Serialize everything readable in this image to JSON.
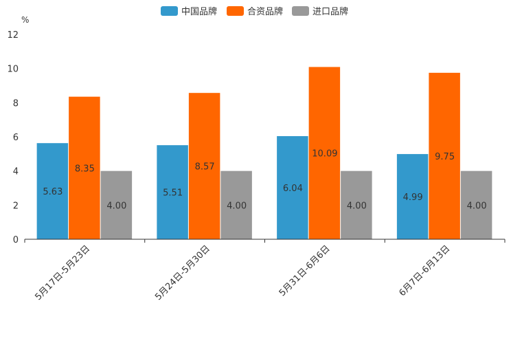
{
  "chart_data": {
    "type": "bar",
    "title": "",
    "ylabel": "%",
    "xlabel": "",
    "ylim": [
      0,
      12
    ],
    "yticks": [
      0,
      2,
      4,
      6,
      8,
      10,
      12
    ],
    "legend_position": "top",
    "categories": [
      "5月17日-5月23日",
      "5月24日-5月30日",
      "5月31日-6月6日",
      "6月7日-6月13日"
    ],
    "series": [
      {
        "name": "中国品牌",
        "color": "#3399CC",
        "values": [
          5.63,
          5.51,
          6.04,
          4.99
        ],
        "labels": [
          "5.63",
          "5.51",
          "6.04",
          "4.99"
        ]
      },
      {
        "name": "合资品牌",
        "color": "#FF6600",
        "values": [
          8.35,
          8.57,
          10.09,
          9.75
        ],
        "labels": [
          "8.35",
          "8.57",
          "10.09",
          "9.75"
        ]
      },
      {
        "name": "进口品牌",
        "color": "#999999",
        "values": [
          4.0,
          4.0,
          4.0,
          4.0
        ],
        "labels": [
          "4.00",
          "4.00",
          "4.00",
          "4.00"
        ]
      }
    ]
  }
}
